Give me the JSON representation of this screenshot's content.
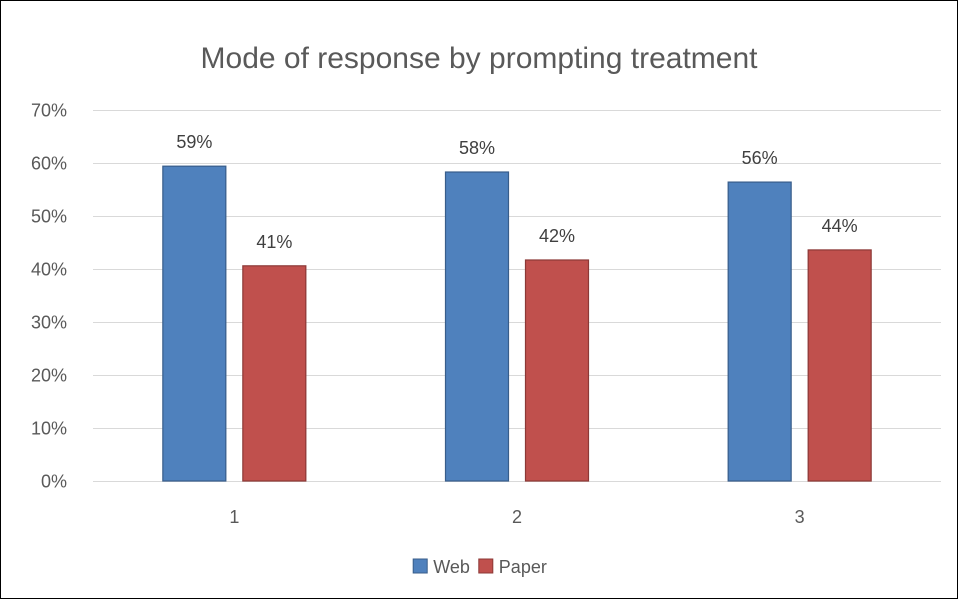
{
  "chart_data": {
    "type": "bar",
    "title": "Mode of response by prompting treatment",
    "xlabel": "",
    "ylabel": "",
    "categories": [
      "1",
      "2",
      "3"
    ],
    "series": [
      {
        "name": "Web",
        "values": [
          59.4,
          58.3,
          56.4
        ],
        "labels": [
          "59%",
          "58%",
          "56%"
        ],
        "color": "#4f81bd",
        "border": "#385d8a"
      },
      {
        "name": "Paper",
        "values": [
          40.6,
          41.7,
          43.6
        ],
        "labels": [
          "41%",
          "42%",
          "44%"
        ],
        "color": "#c0504d",
        "border": "#8c3836"
      }
    ],
    "ylim": [
      0,
      70
    ],
    "yticks": [
      0,
      10,
      20,
      30,
      40,
      50,
      60,
      70
    ],
    "ytick_labels": [
      "0%",
      "10%",
      "20%",
      "30%",
      "40%",
      "50%",
      "60%",
      "70%"
    ],
    "grid": true,
    "legend_position": "bottom"
  }
}
